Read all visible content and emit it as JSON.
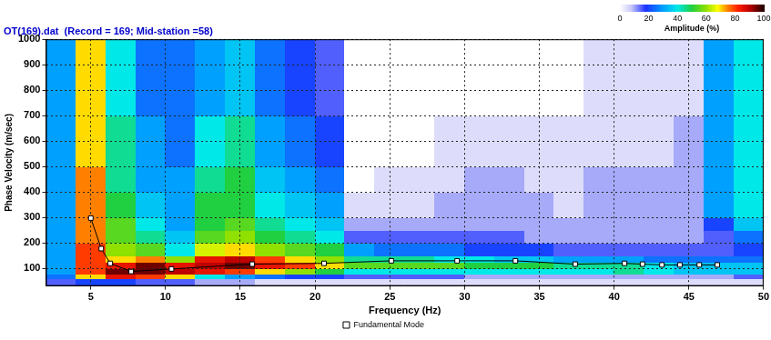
{
  "chart_data": {
    "type": "heatmap",
    "title": "OT(169).dat  (Record = 169; Mid-station =58)",
    "x_label": "Frequency (Hz)",
    "y_label": "Phase Velocity (m/sec)",
    "xlim": [
      2,
      50
    ],
    "xticks": [
      5,
      10,
      15,
      20,
      25,
      30,
      35,
      40,
      45,
      50
    ],
    "ylim": [
      30,
      1000
    ],
    "yticks": [
      100,
      200,
      300,
      400,
      500,
      600,
      700,
      800,
      900,
      1000
    ],
    "grid": true,
    "legend": "bottom",
    "heatmap": {
      "x_bins": [
        2,
        4,
        6,
        8,
        10,
        12,
        14,
        16,
        18,
        20,
        22,
        24,
        26,
        28,
        30,
        32,
        34,
        36,
        38,
        40,
        42,
        44,
        46,
        48,
        50
      ],
      "y_bins": [
        30,
        60,
        80,
        100,
        125,
        150,
        200,
        250,
        300,
        400,
        500,
        700,
        1000
      ],
      "cells": [
        [
          15,
          25,
          30,
          30,
          30,
          30,
          30,
          30,
          30,
          30,
          30,
          30
        ],
        [
          20,
          70,
          80,
          80,
          80,
          80,
          75,
          75,
          75,
          75,
          70,
          70
        ],
        [
          20,
          85,
          95,
          85,
          70,
          60,
          55,
          55,
          50,
          45,
          45,
          40
        ],
        [
          15,
          80,
          95,
          95,
          75,
          55,
          45,
          40,
          35,
          30,
          30,
          25
        ],
        [
          15,
          70,
          90,
          85,
          60,
          40,
          35,
          30,
          30,
          30,
          25,
          25
        ],
        [
          10,
          40,
          85,
          90,
          85,
          65,
          55,
          50,
          50,
          45,
          40,
          30
        ],
        [
          10,
          30,
          80,
          95,
          90,
          70,
          60,
          55,
          50,
          50,
          45,
          35
        ],
        [
          5,
          25,
          70,
          85,
          80,
          60,
          50,
          45,
          40,
          35,
          30,
          25
        ],
        [
          5,
          20,
          60,
          80,
          70,
          55,
          45,
          40,
          35,
          30,
          25,
          20
        ],
        [
          5,
          20,
          50,
          70,
          60,
          50,
          40,
          35,
          30,
          25,
          20,
          15
        ],
        [
          5,
          15,
          40,
          55,
          45,
          30,
          15,
          10,
          5,
          0,
          0,
          0
        ],
        [
          5,
          15,
          40,
          55,
          45,
          25,
          15,
          10,
          5,
          5,
          0,
          0
        ],
        [
          5,
          15,
          40,
          55,
          45,
          25,
          15,
          10,
          5,
          5,
          0,
          0
        ],
        [
          5,
          15,
          40,
          55,
          40,
          25,
          15,
          10,
          10,
          5,
          5,
          0
        ],
        [
          5,
          10,
          40,
          50,
          40,
          20,
          15,
          10,
          10,
          10,
          5,
          0
        ],
        [
          5,
          10,
          40,
          50,
          35,
          20,
          15,
          10,
          10,
          10,
          5,
          0
        ],
        [
          5,
          10,
          40,
          50,
          35,
          20,
          10,
          10,
          10,
          5,
          5,
          0
        ],
        [
          5,
          10,
          40,
          45,
          30,
          15,
          10,
          10,
          5,
          5,
          5,
          0
        ],
        [
          5,
          10,
          40,
          45,
          30,
          15,
          10,
          10,
          10,
          10,
          5,
          5
        ],
        [
          5,
          10,
          45,
          45,
          30,
          15,
          10,
          10,
          10,
          10,
          5,
          5
        ],
        [
          5,
          10,
          40,
          40,
          25,
          15,
          10,
          10,
          10,
          10,
          5,
          5
        ],
        [
          5,
          10,
          35,
          35,
          25,
          15,
          10,
          10,
          10,
          10,
          10,
          5
        ],
        [
          5,
          10,
          35,
          35,
          25,
          15,
          15,
          20,
          30,
          30,
          30,
          30
        ],
        [
          5,
          15,
          35,
          35,
          25,
          20,
          25,
          35,
          40,
          40,
          40,
          40
        ]
      ]
    },
    "colorbar": {
      "label": "Amplitude (%)",
      "range": [
        0,
        100
      ],
      "ticks": [
        0,
        20,
        40,
        60,
        80,
        100
      ]
    },
    "series": [
      {
        "name": "Fundamental Mode",
        "type": "line",
        "marker": "square",
        "color": "#000000",
        "x": [
          5.0,
          5.7,
          6.3,
          7.7,
          10.4,
          15.8,
          20.6,
          25.1,
          29.5,
          33.4,
          37.4,
          40.7,
          41.9,
          43.2,
          44.4,
          45.7,
          46.9
        ],
        "values": [
          297,
          177,
          119,
          87,
          97,
          116,
          119,
          129,
          129,
          129,
          116,
          119,
          116,
          113,
          113,
          113,
          113
        ]
      }
    ]
  }
}
